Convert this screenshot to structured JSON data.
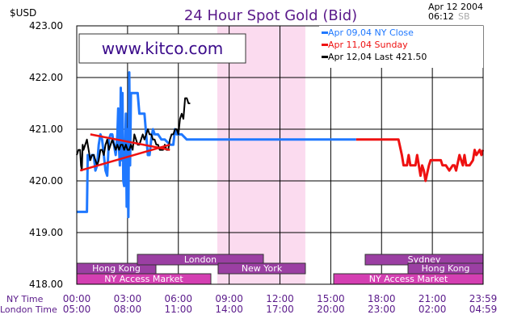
{
  "header": {
    "title": "24 Hour Spot Gold (Bid)",
    "currency": "$USD",
    "date": "Apr 12 2004",
    "time": "06:12",
    "tag": "SB"
  },
  "watermark": "www.kitco.com",
  "legend": [
    {
      "label": "Apr  09,04  NY  Close",
      "color": "#1f78ff"
    },
    {
      "label": "Apr  11,04       Sunday",
      "color": "#ee1111"
    },
    {
      "label": "Apr  12,04  Last  421.50",
      "color": "#000000"
    }
  ],
  "axis_labels": {
    "ny_time": "NY Time",
    "london_time": "London Time"
  },
  "sessions": [
    {
      "name": "Hong  Kong",
      "color": "#9b3fa3"
    },
    {
      "name": "NY  Access  Market",
      "color": "#d43fb2"
    },
    {
      "name": "London",
      "color": "#9b3fa3"
    },
    {
      "name": "New  York",
      "color": "#9b3fa3"
    },
    {
      "name": "Sydney",
      "color": "#9b3fa3"
    },
    {
      "name": "Hong  Kong",
      "color": "#9b3fa3"
    },
    {
      "name": "NY  Access  Market",
      "color": "#d43fb2"
    }
  ],
  "chart_data": {
    "type": "line",
    "title": "24 Hour Spot Gold (Bid)",
    "ylabel": "$USD",
    "xlabel": "NY Time / London Time",
    "ylim": [
      418.0,
      423.0
    ],
    "y_ticks": [
      "423.00",
      "422.00",
      "421.00",
      "420.00",
      "419.00",
      "418.00"
    ],
    "x_ticks_ny": [
      "00:00",
      "03:00",
      "06:00",
      "09:00",
      "12:00",
      "15:00",
      "18:00",
      "21:00",
      "23:59"
    ],
    "x_ticks_london": [
      "05:00",
      "08:00",
      "11:00",
      "14:00",
      "17:00",
      "20:00",
      "23:00",
      "02:00",
      "04:59"
    ],
    "grid": true,
    "legend_position": "top-right",
    "x_unit": "NY hours",
    "shaded_region_ny_hours": [
      8.3,
      13.5
    ],
    "series": [
      {
        "name": "Apr  09,04  NY  Close",
        "color": "#1f78ff",
        "points": [
          [
            0.0,
            419.4
          ],
          [
            0.3,
            419.4
          ],
          [
            0.5,
            419.4
          ],
          [
            0.6,
            419.4
          ],
          [
            0.65,
            420.5
          ],
          [
            0.7,
            420.4
          ],
          [
            0.9,
            420.5
          ],
          [
            1.0,
            420.5
          ],
          [
            1.1,
            420.2
          ],
          [
            1.2,
            420.3
          ],
          [
            1.3,
            420.7
          ],
          [
            1.4,
            420.9
          ],
          [
            1.5,
            420.8
          ],
          [
            1.6,
            420.5
          ],
          [
            1.7,
            420.2
          ],
          [
            1.8,
            420.1
          ],
          [
            1.9,
            420.8
          ],
          [
            2.0,
            420.9
          ],
          [
            2.1,
            420.9
          ],
          [
            2.2,
            420.7
          ],
          [
            2.3,
            420.5
          ],
          [
            2.4,
            420.9
          ],
          [
            2.45,
            421.4
          ],
          [
            2.5,
            420.6
          ],
          [
            2.55,
            420.3
          ],
          [
            2.6,
            421.8
          ],
          [
            2.65,
            420.4
          ],
          [
            2.7,
            421.7
          ],
          [
            2.75,
            420.0
          ],
          [
            2.8,
            419.9
          ],
          [
            2.85,
            420.5
          ],
          [
            2.9,
            421.3
          ],
          [
            2.95,
            419.5
          ],
          [
            3.0,
            421.0
          ],
          [
            3.05,
            419.3
          ],
          [
            3.1,
            422.1
          ],
          [
            3.15,
            420.3
          ],
          [
            3.2,
            421.7
          ],
          [
            3.3,
            421.7
          ],
          [
            3.4,
            421.7
          ],
          [
            3.5,
            421.7
          ],
          [
            3.6,
            421.7
          ],
          [
            3.7,
            421.3
          ],
          [
            3.8,
            421.3
          ],
          [
            3.9,
            421.3
          ],
          [
            4.0,
            421.3
          ],
          [
            4.1,
            420.9
          ],
          [
            4.2,
            420.5
          ],
          [
            4.3,
            420.5
          ],
          [
            4.4,
            420.8
          ],
          [
            4.5,
            421.0
          ],
          [
            4.6,
            420.9
          ],
          [
            4.7,
            420.9
          ],
          [
            4.8,
            420.9
          ],
          [
            5.0,
            420.8
          ],
          [
            5.2,
            420.8
          ],
          [
            5.5,
            420.7
          ],
          [
            5.6,
            420.7
          ],
          [
            5.7,
            420.7
          ],
          [
            5.8,
            421.0
          ],
          [
            5.9,
            420.9
          ],
          [
            6.0,
            420.9
          ],
          [
            6.2,
            420.9
          ],
          [
            6.5,
            420.8
          ],
          [
            7.0,
            420.8
          ],
          [
            8.0,
            420.8
          ],
          [
            9.0,
            420.8
          ],
          [
            10.0,
            420.8
          ],
          [
            11.0,
            420.8
          ],
          [
            12.0,
            420.8
          ],
          [
            13.0,
            420.8
          ],
          [
            14.0,
            420.8
          ],
          [
            15.0,
            420.8
          ],
          [
            16.0,
            420.8
          ],
          [
            16.5,
            420.8
          ]
        ]
      },
      {
        "name": "Apr  11,04       Sunday",
        "color": "#ee1111",
        "points": [
          [
            16.5,
            420.8
          ],
          [
            17.0,
            420.8
          ],
          [
            17.5,
            420.8
          ],
          [
            18.0,
            420.8
          ],
          [
            18.5,
            420.8
          ],
          [
            19.0,
            420.8
          ],
          [
            19.2,
            420.5
          ],
          [
            19.3,
            420.3
          ],
          [
            19.5,
            420.3
          ],
          [
            19.6,
            420.5
          ],
          [
            19.7,
            420.3
          ],
          [
            19.8,
            420.3
          ],
          [
            20.0,
            420.3
          ],
          [
            20.1,
            420.5
          ],
          [
            20.2,
            420.3
          ],
          [
            20.3,
            420.1
          ],
          [
            20.4,
            420.3
          ],
          [
            20.5,
            420.2
          ],
          [
            20.6,
            420.0
          ],
          [
            20.8,
            420.3
          ],
          [
            20.9,
            420.4
          ],
          [
            21.1,
            420.4
          ],
          [
            21.3,
            420.4
          ],
          [
            21.5,
            420.4
          ],
          [
            21.6,
            420.3
          ],
          [
            21.8,
            420.3
          ],
          [
            22.0,
            420.2
          ],
          [
            22.2,
            420.3
          ],
          [
            22.3,
            420.3
          ],
          [
            22.4,
            420.2
          ],
          [
            22.6,
            420.5
          ],
          [
            22.7,
            420.4
          ],
          [
            22.8,
            420.3
          ],
          [
            22.9,
            420.5
          ],
          [
            23.0,
            420.3
          ],
          [
            23.2,
            420.3
          ],
          [
            23.4,
            420.4
          ],
          [
            23.5,
            420.6
          ],
          [
            23.6,
            420.5
          ],
          [
            23.8,
            420.6
          ],
          [
            23.9,
            420.5
          ],
          [
            23.98,
            420.6
          ]
        ]
      },
      {
        "name": "Apr  12,04  Last  421.50",
        "color": "#000000",
        "points": [
          [
            0.0,
            420.5
          ],
          [
            0.1,
            420.6
          ],
          [
            0.2,
            420.6
          ],
          [
            0.25,
            420.3
          ],
          [
            0.3,
            420.2
          ],
          [
            0.35,
            420.7
          ],
          [
            0.4,
            420.6
          ],
          [
            0.5,
            420.7
          ],
          [
            0.6,
            420.8
          ],
          [
            0.7,
            420.6
          ],
          [
            0.8,
            420.4
          ],
          [
            0.9,
            420.5
          ],
          [
            1.0,
            420.5
          ],
          [
            1.1,
            420.4
          ],
          [
            1.2,
            420.3
          ],
          [
            1.3,
            420.4
          ],
          [
            1.4,
            420.6
          ],
          [
            1.5,
            420.6
          ],
          [
            1.6,
            420.5
          ],
          [
            1.7,
            420.7
          ],
          [
            1.8,
            420.8
          ],
          [
            1.9,
            420.6
          ],
          [
            2.0,
            420.7
          ],
          [
            2.1,
            420.8
          ],
          [
            2.2,
            420.7
          ],
          [
            2.3,
            420.6
          ],
          [
            2.4,
            420.7
          ],
          [
            2.5,
            420.6
          ],
          [
            2.6,
            420.7
          ],
          [
            2.7,
            420.7
          ],
          [
            2.8,
            420.6
          ],
          [
            2.9,
            420.7
          ],
          [
            3.0,
            420.6
          ],
          [
            3.1,
            420.6
          ],
          [
            3.2,
            420.7
          ],
          [
            3.3,
            420.6
          ],
          [
            3.4,
            420.9
          ],
          [
            3.5,
            420.8
          ],
          [
            3.6,
            420.7
          ],
          [
            3.7,
            420.7
          ],
          [
            3.8,
            420.8
          ],
          [
            3.9,
            420.9
          ],
          [
            4.0,
            420.8
          ],
          [
            4.1,
            420.9
          ],
          [
            4.2,
            421.0
          ],
          [
            4.3,
            420.9
          ],
          [
            4.4,
            420.9
          ],
          [
            4.5,
            420.8
          ],
          [
            4.6,
            420.8
          ],
          [
            4.7,
            420.7
          ],
          [
            4.8,
            420.7
          ],
          [
            4.9,
            420.6
          ],
          [
            5.0,
            420.6
          ],
          [
            5.1,
            420.6
          ],
          [
            5.2,
            420.7
          ],
          [
            5.3,
            420.6
          ],
          [
            5.4,
            420.6
          ],
          [
            5.5,
            420.8
          ],
          [
            5.6,
            420.9
          ],
          [
            5.7,
            420.9
          ],
          [
            5.8,
            421.0
          ],
          [
            5.9,
            421.0
          ],
          [
            6.0,
            420.9
          ],
          [
            6.1,
            421.2
          ],
          [
            6.2,
            421.3
          ],
          [
            6.3,
            421.2
          ],
          [
            6.4,
            421.6
          ],
          [
            6.5,
            421.6
          ],
          [
            6.6,
            421.5
          ],
          [
            6.7,
            421.5
          ]
        ]
      },
      {
        "name": "",
        "color": "#ee1111",
        "points": [
          [
            0.2,
            420.2
          ],
          [
            5.5,
            420.7
          ]
        ]
      },
      {
        "name": "",
        "color": "#ee1111",
        "points": [
          [
            0.8,
            420.9
          ],
          [
            5.5,
            420.6
          ]
        ]
      }
    ]
  }
}
